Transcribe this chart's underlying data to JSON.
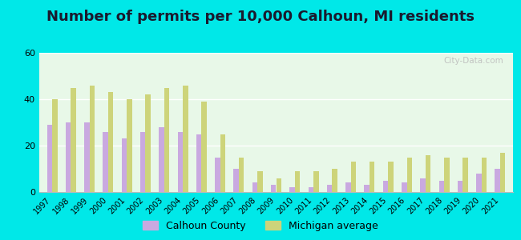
{
  "title": "Number of permits per 10,000 Calhoun, MI residents",
  "years": [
    1997,
    1998,
    1999,
    2000,
    2001,
    2002,
    2003,
    2004,
    2005,
    2006,
    2007,
    2008,
    2009,
    2010,
    2011,
    2012,
    2013,
    2014,
    2015,
    2016,
    2017,
    2018,
    2019,
    2020,
    2021
  ],
  "calhoun": [
    29,
    30,
    30,
    26,
    23,
    26,
    28,
    26,
    25,
    15,
    10,
    4,
    3,
    2,
    2,
    3,
    4,
    3,
    5,
    4,
    6,
    5,
    5,
    8,
    10
  ],
  "michigan": [
    40,
    45,
    46,
    43,
    40,
    42,
    45,
    46,
    39,
    25,
    15,
    9,
    6,
    9,
    9,
    10,
    13,
    13,
    13,
    15,
    16,
    15,
    15,
    15,
    17
  ],
  "calhoun_color": "#c9a9e0",
  "michigan_color": "#cdd47a",
  "background_color": "#e8f8e8",
  "outer_background": "#00e8e8",
  "ylim": [
    0,
    60
  ],
  "yticks": [
    0,
    20,
    40,
    60
  ],
  "title_fontsize": 13,
  "bar_width": 0.28,
  "watermark_text": "City-Data.com"
}
